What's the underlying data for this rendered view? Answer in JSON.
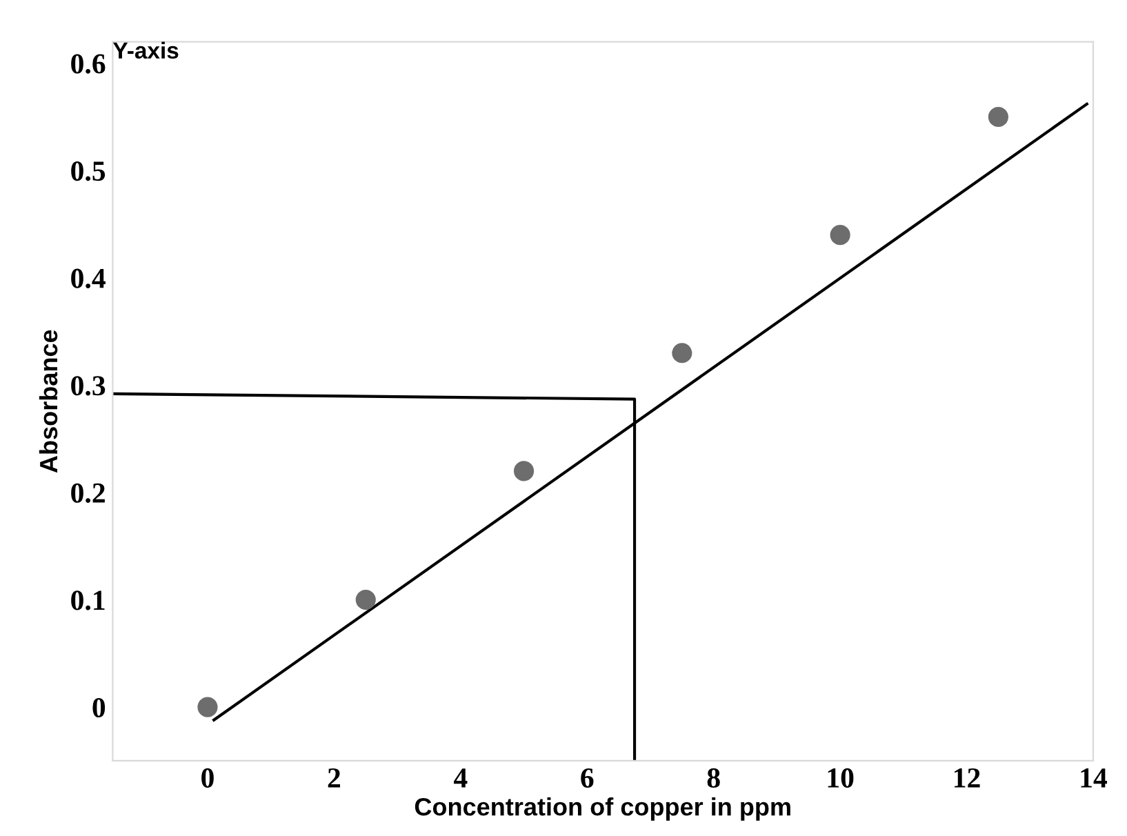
{
  "chart_data": {
    "type": "scatter",
    "xlabel": "Concentration of copper in ppm",
    "ylabel": "Absorbance",
    "annotations": [
      "Y-axis"
    ],
    "x": [
      0,
      2.5,
      5,
      7.5,
      10,
      12.5
    ],
    "series": [
      {
        "color": "#6d6d6d",
        "marker": "circle",
        "values": [
          0,
          0.1,
          0.22,
          0.33,
          0.44,
          0.55
        ]
      },
      {
        "type": "line",
        "color": "#000000",
        "x": [
          0.1,
          13.9
        ],
        "values": [
          -0.012,
          0.562
        ]
      },
      {
        "type": "line",
        "color": "#000000",
        "x": [
          -1.5,
          6.75,
          6.75
        ],
        "values": [
          0.292,
          0.287,
          -0.05
        ]
      }
    ],
    "xlim": [
      -1.5,
      14
    ],
    "ylim": [
      -0.05,
      0.62
    ],
    "xticks": [
      0,
      2,
      4,
      6,
      8,
      10,
      12,
      14
    ],
    "yticks": [
      0,
      0.1,
      0.2,
      0.3,
      0.4,
      0.5,
      0.6
    ],
    "grid": false,
    "legend": false
  }
}
